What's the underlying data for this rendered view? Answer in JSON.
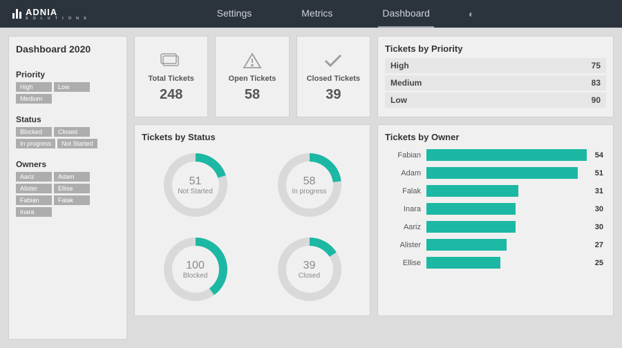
{
  "brand": {
    "name": "ADNIA",
    "sub": "S O L U T I O N S"
  },
  "nav": {
    "items": [
      "Settings",
      "Metrics",
      "Dashboard"
    ],
    "active": 2
  },
  "sidebar": {
    "title": "Dashboard  2020",
    "sections": [
      {
        "label": "Priority",
        "chips": [
          "High",
          "Low",
          "Medium"
        ]
      },
      {
        "label": "Status",
        "chips": [
          "Blocked",
          "Closed",
          "In progress",
          "Not Started"
        ]
      },
      {
        "label": "Owners",
        "chips": [
          "Aariz",
          "Adam",
          "Alister",
          "Ellise",
          "Fabian",
          "Falak",
          "Inara"
        ]
      }
    ]
  },
  "kpis": [
    {
      "label": "Total Tickets",
      "value": "248",
      "icon": "tickets"
    },
    {
      "label": "Open Tickets",
      "value": "58",
      "icon": "warn"
    },
    {
      "label": "Closed Tickets",
      "value": "39",
      "icon": "check"
    }
  ],
  "priority": {
    "title": "Tickets by Priority",
    "rows": [
      {
        "label": "High",
        "value": "75"
      },
      {
        "label": "Medium",
        "value": "83"
      },
      {
        "label": "Low",
        "value": "90"
      }
    ]
  },
  "status": {
    "title": "Tickets by Status",
    "type": "donut",
    "ring_bg": "#d9d9d9",
    "ring_fg": "#1cb8a3",
    "ring_width": 12,
    "items": [
      {
        "label": "Not Started",
        "value": 51,
        "pct": 0.2
      },
      {
        "label": "In progress",
        "value": 58,
        "pct": 0.23
      },
      {
        "label": "Blocked",
        "value": 100,
        "pct": 0.4
      },
      {
        "label": "Closed",
        "value": 39,
        "pct": 0.16
      }
    ]
  },
  "owners": {
    "title": "Tickets by Owner",
    "type": "bar",
    "bar_color": "#1cb8a3",
    "max": 54,
    "items": [
      {
        "label": "Fabian",
        "value": 54
      },
      {
        "label": "Adam",
        "value": 51
      },
      {
        "label": "Falak",
        "value": 31
      },
      {
        "label": "Inara",
        "value": 30
      },
      {
        "label": "Aariz",
        "value": 30
      },
      {
        "label": "Alister",
        "value": 27
      },
      {
        "label": "Ellise",
        "value": 25
      }
    ]
  },
  "colors": {
    "accent": "#1cb8a3",
    "topbar": "#2b333d",
    "card_bg": "#f0f0f0",
    "page_bg": "#dcdcdc",
    "chip": "#adadad"
  }
}
